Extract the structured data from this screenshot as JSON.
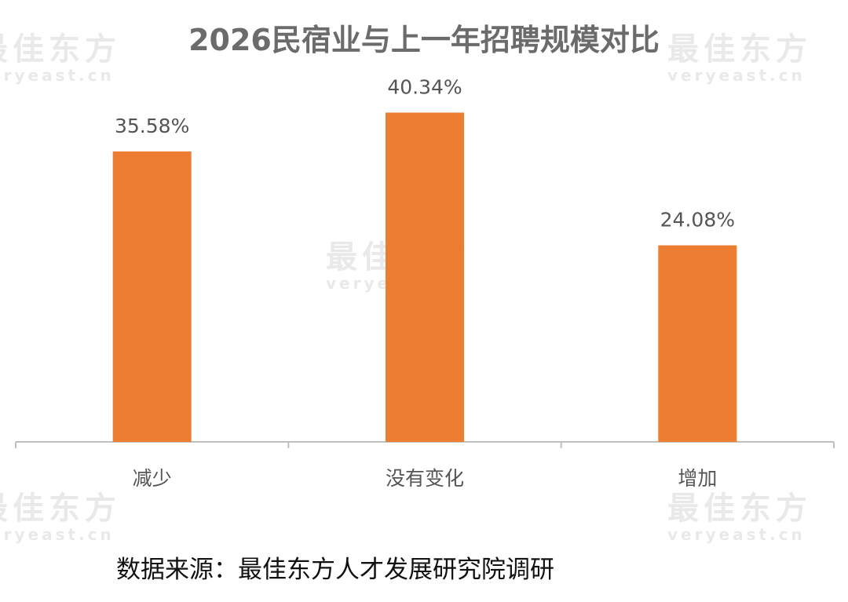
{
  "title": "2026民宿业与上一年招聘规模对比",
  "source": "数据来源：最佳东方人才发展研究院调研",
  "watermark": {
    "cn": "最佳东方",
    "en": "veryeast.cn"
  },
  "chart_data": {
    "type": "bar",
    "title": "2026民宿业与上一年招聘规模对比",
    "categories": [
      "减少",
      "没有变化",
      "增加"
    ],
    "values": [
      35.58,
      40.34,
      24.08
    ],
    "value_labels": [
      "35.58%",
      "40.34%",
      "24.08%"
    ],
    "unit": "%",
    "ylim": [
      0,
      45
    ],
    "grid": false,
    "legend": "none",
    "bar_color": "#ED7D31",
    "axis_color": "#BFBFBF"
  }
}
